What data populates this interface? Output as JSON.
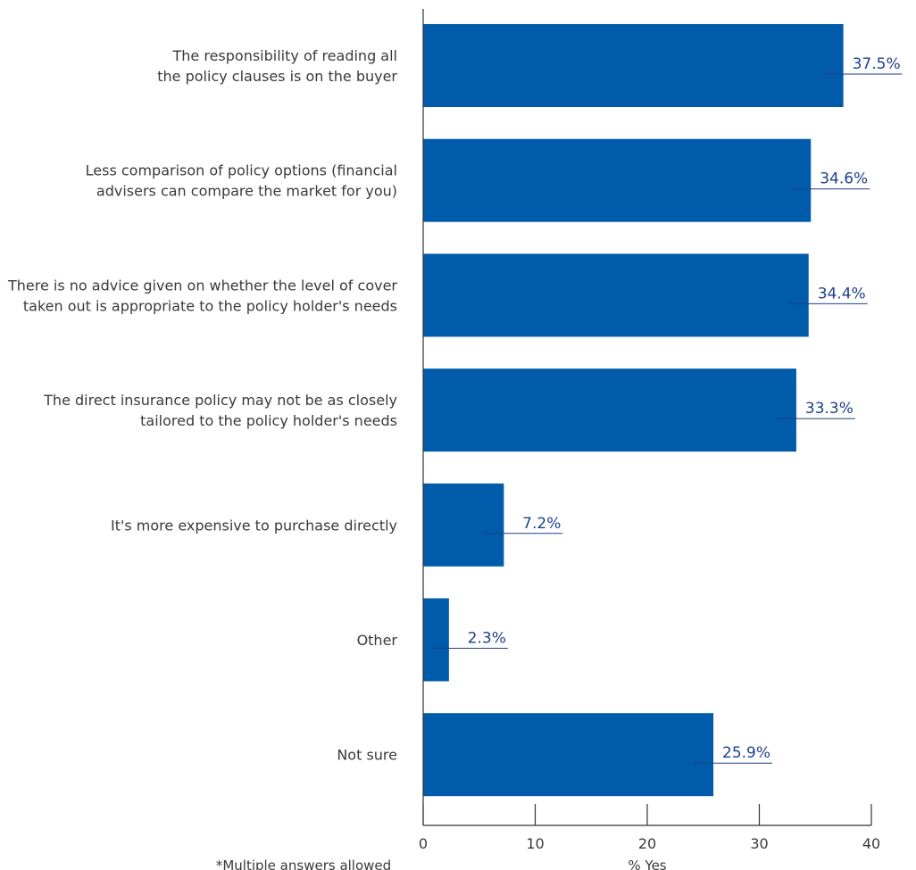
{
  "chart_data": {
    "type": "bar",
    "orientation": "horizontal",
    "categories": [
      [
        "The responsibility of reading all",
        "the policy clauses is on the buyer"
      ],
      [
        "Less comparison of policy options (financial",
        "advisers can compare the market for you)"
      ],
      [
        "There is no advice given on whether the level of cover",
        "taken out is appropriate to the policy holder's needs"
      ],
      [
        "The direct insurance policy  may not be as closely",
        "tailored to the policy holder's needs"
      ],
      [
        "It's more expensive to purchase directly"
      ],
      [
        "Other"
      ],
      [
        "Not sure"
      ]
    ],
    "values": [
      37.5,
      34.6,
      34.4,
      33.3,
      7.2,
      2.3,
      25.9
    ],
    "value_labels": [
      "37.5%",
      "34.6%",
      "34.4%",
      "33.3%",
      "7.2%",
      "2.3%",
      "25.9%"
    ],
    "xlabel": "% Yes",
    "xlim": [
      0,
      40
    ],
    "xticks": [
      0,
      10,
      20,
      30,
      40
    ],
    "footnote": "*Multiple answers allowed",
    "grid": false,
    "bar_color": "#005baa",
    "label_color": "#1f3f8a"
  }
}
